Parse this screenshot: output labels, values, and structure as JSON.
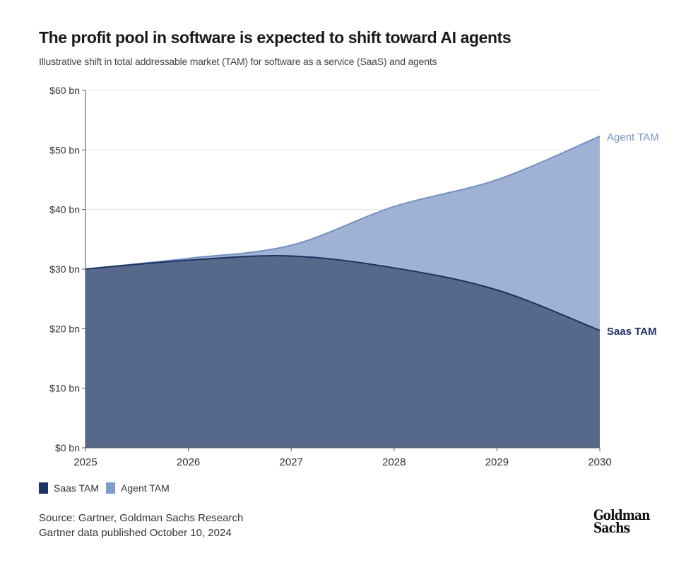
{
  "title": "The profit pool in software is expected to shift toward AI agents",
  "subtitle": "Illustrative shift in total addressable market (TAM) for software as a service (SaaS) and agents",
  "chart_data": {
    "type": "area",
    "stacked": false,
    "x": [
      2025,
      2026,
      2027,
      2028,
      2029,
      2030
    ],
    "x_tick_labels": [
      "2025",
      "2026",
      "2027",
      "2028",
      "2029",
      "2030"
    ],
    "y_tick_labels": [
      "$0 bn",
      "$10 bn",
      "$20 bn",
      "$30 bn",
      "$40 bn",
      "$50 bn",
      "$60 bn"
    ],
    "ylim": [
      0,
      60
    ],
    "y_unit": "$ bn",
    "grid": "horizontal",
    "legend": "bottom-left",
    "series": [
      {
        "name": "Agent TAM",
        "values": [
          30,
          31.8,
          34,
          40.5,
          45,
          52.3
        ],
        "fill": "#9fb2d3",
        "line": "#7590c4",
        "label_color": "#7a96c8"
      },
      {
        "name": "Saas TAM",
        "values": [
          30,
          31.5,
          32.2,
          30.2,
          26.5,
          19.7
        ],
        "fill": "#56698b",
        "line": "#1e3262",
        "label_color": "#1e3366"
      }
    ]
  },
  "legend": [
    {
      "label": "Saas TAM",
      "color": "#1e3366"
    },
    {
      "label": "Agent TAM",
      "color": "#7f9ccd"
    }
  ],
  "source": "Source: Gartner, Goldman Sachs Research",
  "published": "Gartner data published October 10, 2024",
  "logo": {
    "line1": "Goldman",
    "line2": "Sachs"
  }
}
